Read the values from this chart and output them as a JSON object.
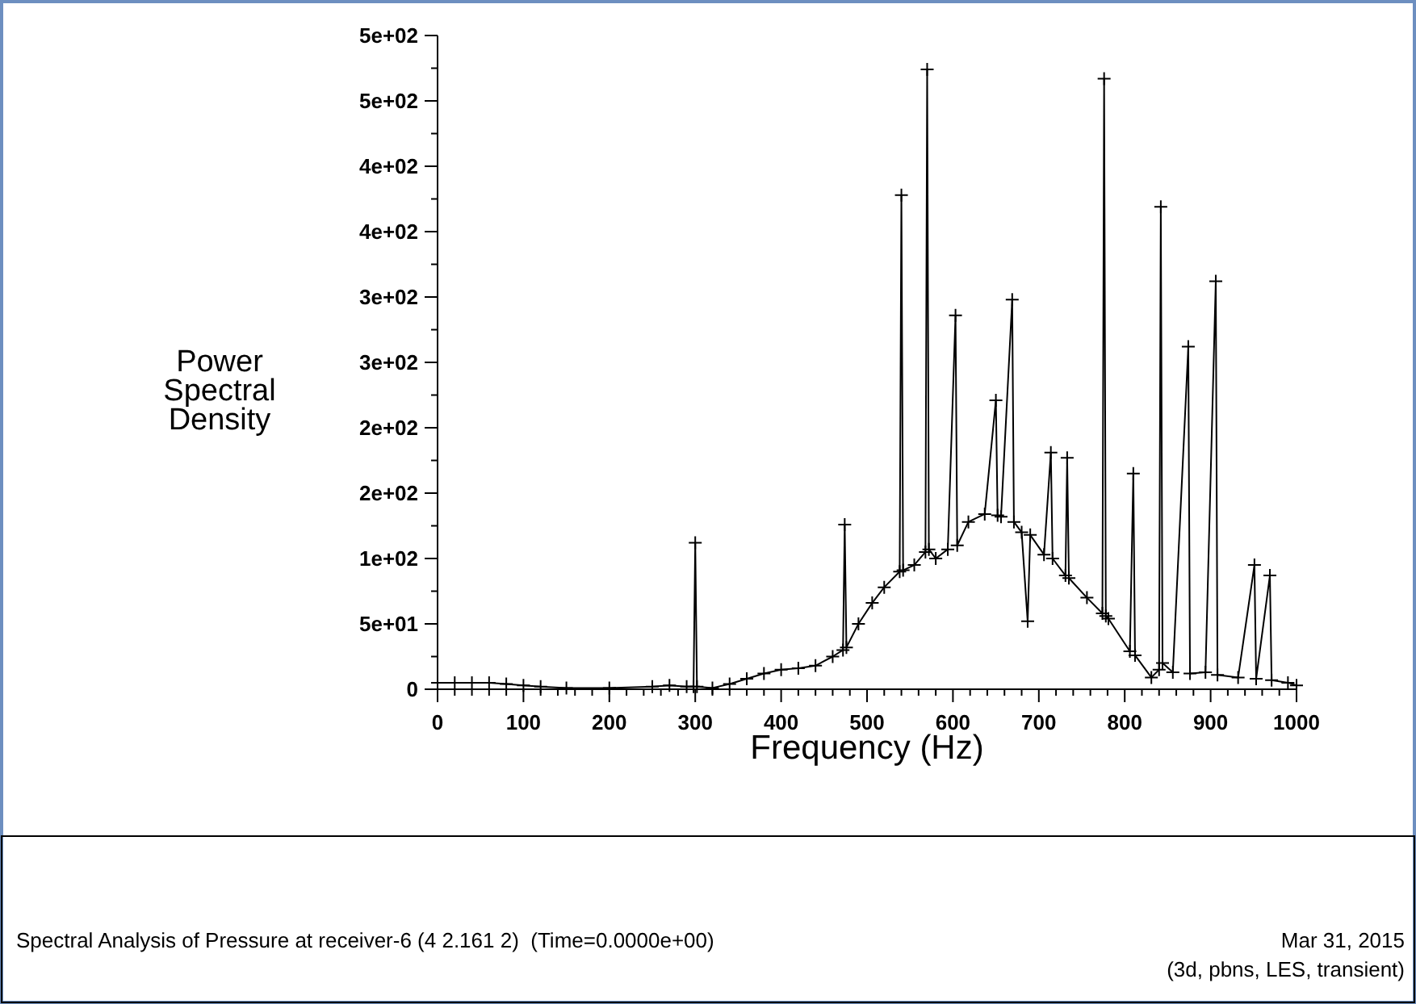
{
  "chart_data": {
    "type": "line",
    "title": "Spectral Analysis of Pressure at receiver-6 (4 2.161 2)  (Time=0.0000e+00)",
    "xlabel": "Frequency (Hz)",
    "ylabel": "Power Spectral Density",
    "annotations": [
      "Mar 31, 2015",
      "(3d, pbns, LES, transient)"
    ],
    "x": [
      0,
      20,
      40,
      60,
      80,
      100,
      120,
      150,
      200,
      250,
      270,
      290,
      298,
      300,
      302,
      320,
      340,
      360,
      380,
      400,
      420,
      440,
      460,
      472,
      474,
      476,
      490,
      506,
      520,
      538,
      540,
      542,
      555,
      568,
      570,
      572,
      580,
      594,
      603,
      605,
      618,
      637,
      650,
      652,
      656,
      669,
      671,
      680,
      687,
      690,
      706,
      714,
      716,
      731,
      733,
      735,
      756,
      774,
      776,
      778,
      781,
      806,
      810,
      812,
      831,
      840,
      842,
      844,
      856,
      874,
      876,
      894,
      906,
      908,
      932,
      951,
      953,
      969,
      971,
      990,
      1000
    ],
    "series": [
      {
        "color": "#000000",
        "values": [
          5,
          5,
          5,
          5,
          4,
          3,
          2,
          1,
          1,
          2,
          3,
          2,
          2,
          112,
          2,
          1,
          4,
          8,
          12,
          15,
          16,
          18,
          25,
          30,
          126,
          32,
          50,
          66,
          78,
          90,
          378,
          91,
          95,
          105,
          474,
          107,
          100,
          107,
          286,
          110,
          128,
          134,
          221,
          133,
          132,
          298,
          128,
          120,
          52,
          118,
          103,
          181,
          100,
          87,
          177,
          85,
          70,
          58,
          467,
          56,
          54,
          29,
          165,
          26,
          9,
          15,
          369,
          20,
          13,
          262,
          12,
          13,
          312,
          11,
          9,
          95,
          8,
          87,
          7,
          5,
          3
        ]
      }
    ],
    "xlim": [
      0,
      1000
    ],
    "xticks": [
      0,
      {
        "value": 20,
        "label": null
      },
      {
        "value": 40,
        "label": null
      },
      {
        "value": 60,
        "label": null
      },
      {
        "value": 80,
        "label": null
      },
      100,
      {
        "value": 120,
        "label": null
      },
      {
        "value": 140,
        "label": null
      },
      {
        "value": 160,
        "label": null
      },
      {
        "value": 180,
        "label": null
      },
      200,
      {
        "value": 220,
        "label": null
      },
      {
        "value": 240,
        "label": null
      },
      {
        "value": 260,
        "label": null
      },
      {
        "value": 280,
        "label": null
      },
      300,
      {
        "value": 320,
        "label": null
      },
      {
        "value": 340,
        "label": null
      },
      {
        "value": 360,
        "label": null
      },
      {
        "value": 380,
        "label": null
      },
      400,
      {
        "value": 420,
        "label": null
      },
      {
        "value": 440,
        "label": null
      },
      {
        "value": 460,
        "label": null
      },
      {
        "value": 480,
        "label": null
      },
      500,
      {
        "value": 520,
        "label": null
      },
      {
        "value": 540,
        "label": null
      },
      {
        "value": 560,
        "label": null
      },
      {
        "value": 580,
        "label": null
      },
      600,
      {
        "value": 620,
        "label": null
      },
      {
        "value": 640,
        "label": null
      },
      {
        "value": 660,
        "label": null
      },
      {
        "value": 680,
        "label": null
      },
      700,
      {
        "value": 720,
        "label": null
      },
      {
        "value": 740,
        "label": null
      },
      {
        "value": 760,
        "label": null
      },
      {
        "value": 780,
        "label": null
      },
      800,
      {
        "value": 820,
        "label": null
      },
      {
        "value": 840,
        "label": null
      },
      {
        "value": 860,
        "label": null
      },
      {
        "value": 880,
        "label": null
      },
      900,
      {
        "value": 920,
        "label": null
      },
      {
        "value": 940,
        "label": null
      },
      {
        "value": 960,
        "label": null
      },
      {
        "value": 980,
        "label": null
      },
      1000
    ],
    "ylim": [
      0,
      500
    ],
    "yticks": [
      0,
      {
        "value": 25,
        "label": null
      },
      {
        "value": 50,
        "label": "5e+01"
      },
      {
        "value": 75,
        "label": null
      },
      {
        "value": 100,
        "label": "1e+02"
      },
      {
        "value": 125,
        "label": null
      },
      {
        "value": 150,
        "label": "2e+02"
      },
      {
        "value": 175,
        "label": null
      },
      {
        "value": 200,
        "label": "2e+02"
      },
      {
        "value": 225,
        "label": null
      },
      {
        "value": 250,
        "label": "3e+02"
      },
      {
        "value": 275,
        "label": null
      },
      {
        "value": 300,
        "label": "3e+02"
      },
      {
        "value": 325,
        "label": null
      },
      {
        "value": 350,
        "label": "4e+02"
      },
      {
        "value": 375,
        "label": null
      },
      {
        "value": 400,
        "label": "4e+02"
      },
      {
        "value": 425,
        "label": null
      },
      {
        "value": 450,
        "label": "5e+02"
      },
      {
        "value": 475,
        "label": null
      },
      {
        "value": 500,
        "label": "5e+02"
      }
    ],
    "grid": false,
    "marker": "cross",
    "line_style": "solid"
  }
}
